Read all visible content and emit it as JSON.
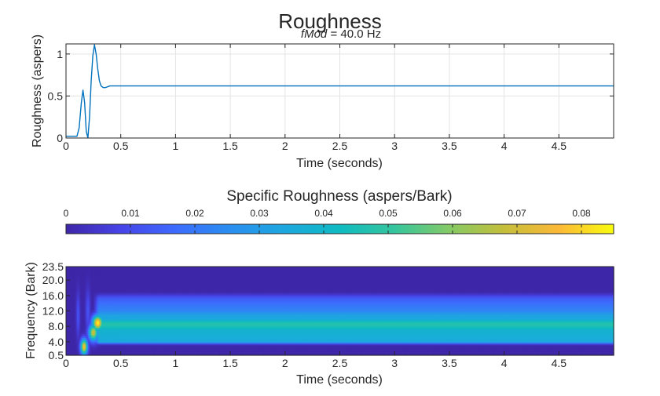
{
  "figure": {
    "title": "Roughness",
    "subtitle_italic": "fMod",
    "subtitle_rest": " = 40.0 Hz"
  },
  "chart_data": [
    {
      "type": "line",
      "name": "roughness-vs-time",
      "xlabel": "Time (seconds)",
      "ylabel": "Roughness (aspers)",
      "xlim": [
        0,
        5
      ],
      "ylim": [
        0,
        1.12
      ],
      "xticks": [
        0,
        0.5,
        1,
        1.5,
        2,
        2.5,
        3,
        3.5,
        4,
        4.5
      ],
      "xtick_labels": [
        "0",
        "0.5",
        "1",
        "1.5",
        "2",
        "2.5",
        "3",
        "3.5",
        "4",
        "4.5"
      ],
      "yticks": [
        0,
        0.5,
        1
      ],
      "ytick_labels": [
        "0",
        "0.5",
        "1"
      ],
      "grid": true,
      "line_color": "#0072bd",
      "series": [
        {
          "x": [
            0,
            0.04,
            0.08,
            0.1,
            0.12,
            0.14,
            0.155,
            0.17,
            0.185,
            0.2,
            0.215,
            0.23,
            0.245,
            0.26,
            0.275,
            0.29,
            0.305,
            0.32,
            0.34,
            0.36,
            0.38,
            0.4,
            0.45,
            0.5,
            1,
            2,
            3,
            4,
            5
          ],
          "y": [
            0.02,
            0.02,
            0.02,
            0.02,
            0.12,
            0.42,
            0.57,
            0.42,
            0.08,
            0.0,
            0.25,
            0.68,
            0.98,
            1.11,
            1.0,
            0.82,
            0.68,
            0.62,
            0.6,
            0.6,
            0.61,
            0.62,
            0.62,
            0.62,
            0.62,
            0.62,
            0.62,
            0.62,
            0.62
          ]
        }
      ]
    },
    {
      "type": "colorbar",
      "name": "specific-roughness-colorbar",
      "title": "Specific Roughness (aspers/Bark)",
      "range": [
        0,
        0.085
      ],
      "ticks": [
        0,
        0.01,
        0.02,
        0.03,
        0.04,
        0.05,
        0.06,
        0.07,
        0.08
      ],
      "tick_labels": [
        "0",
        "0.01",
        "0.02",
        "0.03",
        "0.04",
        "0.05",
        "0.06",
        "0.07",
        "0.08"
      ],
      "colormap": [
        "#3e26a8",
        "#4744e8",
        "#3d6bfd",
        "#2a8ef0",
        "#1ca8de",
        "#0ebbc1",
        "#35c59d",
        "#84ca66",
        "#c5be3a",
        "#fbb937",
        "#f9fb0e"
      ]
    },
    {
      "type": "heatmap",
      "name": "specific-roughness-heatmap",
      "xlabel": "Time (seconds)",
      "ylabel": "Frequency (Bark)",
      "xlim": [
        0,
        5
      ],
      "ylim": [
        0.5,
        23.5
      ],
      "xticks": [
        0,
        0.5,
        1,
        1.5,
        2,
        2.5,
        3,
        3.5,
        4,
        4.5
      ],
      "xtick_labels": [
        "0",
        "0.5",
        "1",
        "1.5",
        "2",
        "2.5",
        "3",
        "3.5",
        "4",
        "4.5"
      ],
      "yticks": [
        0.5,
        4,
        8,
        12,
        16,
        20,
        23.5
      ],
      "ytick_labels": [
        "0.5",
        "4.0",
        "8.0",
        "12.0",
        "16.0",
        "20.0",
        "23.5"
      ],
      "steady_state_profile": {
        "bark": [
          0.5,
          3.2,
          3.6,
          4.0,
          5.0,
          7.0,
          8.0,
          8.6,
          9.2,
          10.0,
          11.0,
          12.0,
          14.0,
          15.5,
          16.2,
          17.0,
          23.5
        ],
        "value": [
          0.0,
          0.0,
          0.012,
          0.034,
          0.036,
          0.038,
          0.045,
          0.048,
          0.045,
          0.034,
          0.032,
          0.024,
          0.018,
          0.013,
          0.006,
          0.0,
          0.0
        ]
      },
      "onset_blobs": [
        {
          "t": 0.165,
          "bark": 2.8,
          "value": 0.078,
          "t_width": 0.022,
          "bark_width": 1.4
        },
        {
          "t": 0.25,
          "bark": 6.5,
          "value": 0.07,
          "t_width": 0.03,
          "bark_width": 1.5
        },
        {
          "t": 0.29,
          "bark": 9.0,
          "value": 0.085,
          "t_width": 0.035,
          "bark_width": 1.4
        },
        {
          "t": 0.11,
          "bark": 11.0,
          "value": 0.012,
          "t_width": 0.012,
          "bark_width": 4.0
        },
        {
          "t": 0.2,
          "bark": 12.0,
          "value": 0.012,
          "t_width": 0.015,
          "bark_width": 4.0
        }
      ],
      "onset_time": 0.3
    }
  ]
}
